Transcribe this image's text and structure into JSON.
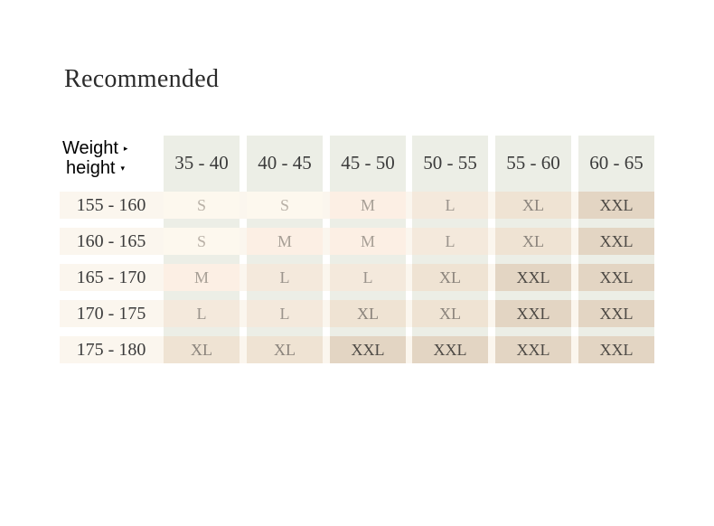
{
  "title": "Recommended",
  "header": {
    "weight_label": "Weight",
    "height_label": "height"
  },
  "weight_ranges": [
    "35 - 40",
    "40 - 45",
    "45 - 50",
    "50 - 55",
    "55 - 60",
    "60 - 65"
  ],
  "rows": [
    {
      "height": "155 - 160",
      "sizes": [
        "S",
        "S",
        "M",
        "L",
        "XL",
        "XXL"
      ]
    },
    {
      "height": "160 - 165",
      "sizes": [
        "S",
        "M",
        "M",
        "L",
        "XL",
        "XXL"
      ]
    },
    {
      "height": "165 - 170",
      "sizes": [
        "M",
        "L",
        "L",
        "XL",
        "XXL",
        "XXL"
      ]
    },
    {
      "height": "170 - 175",
      "sizes": [
        "L",
        "L",
        "XL",
        "XL",
        "XXL",
        "XXL"
      ]
    },
    {
      "height": "175 - 180",
      "sizes": [
        "XL",
        "XL",
        "XXL",
        "XXL",
        "XXL",
        "XXL"
      ]
    }
  ],
  "colors": {
    "header_bg": "#eceee6",
    "row_bg": "#fbf6ee",
    "S": "#fdf8ee",
    "M": "#fcefe4",
    "L": "#f4e9dc",
    "XL": "#efe3d3",
    "XXL": "#e3d5c3"
  }
}
